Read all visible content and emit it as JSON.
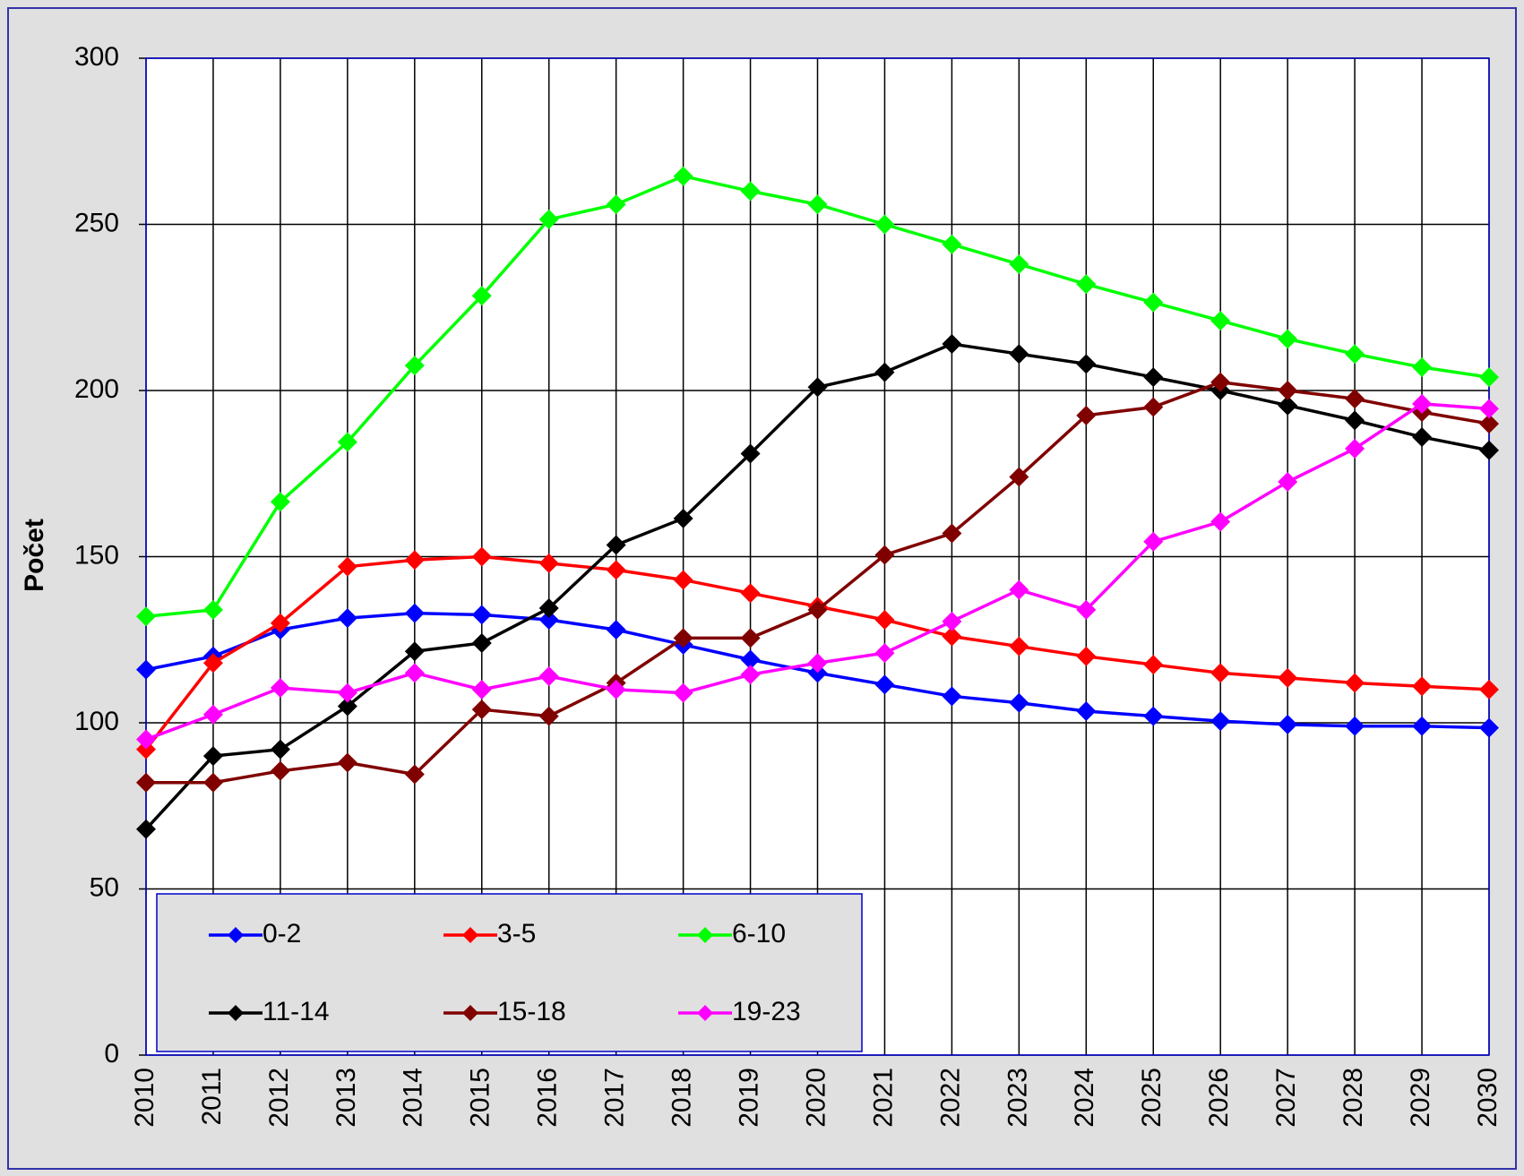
{
  "chart_data": {
    "type": "line",
    "y_label": "Počet",
    "categories": [
      "2010",
      "2011",
      "2012",
      "2013",
      "2014",
      "2015",
      "2016",
      "2017",
      "2018",
      "2019",
      "2020",
      "2021",
      "2022",
      "2023",
      "2024",
      "2025",
      "2026",
      "2027",
      "2028",
      "2029",
      "2030"
    ],
    "ylim": [
      0,
      300
    ],
    "yticks": [
      0,
      50,
      100,
      150,
      200,
      250,
      300
    ],
    "grid": true,
    "legend": "lower left",
    "series": [
      {
        "name": "0-2",
        "color": "#0000ff",
        "values": [
          116,
          120,
          128,
          131.5,
          133,
          132.5,
          131,
          128,
          123.5,
          119,
          115,
          111.5,
          108,
          106,
          103.5,
          102,
          100.5,
          99.5,
          99,
          99,
          98.5
        ]
      },
      {
        "name": "3-5",
        "color": "#ff0000",
        "values": [
          92,
          118,
          130,
          147,
          149,
          150,
          148,
          146,
          143,
          139,
          135,
          131,
          126,
          123,
          120,
          117.5,
          115,
          113.5,
          112,
          111,
          110
        ]
      },
      {
        "name": "6-10",
        "color": "#00ff00",
        "values": [
          132,
          134,
          166.5,
          184.5,
          207.5,
          228.5,
          251.5,
          256,
          264.5,
          260,
          256,
          250,
          244,
          238,
          232,
          226.5,
          221,
          215.5,
          211,
          207,
          204
        ]
      },
      {
        "name": "11-14",
        "color": "#000000",
        "values": [
          68,
          90,
          92,
          105,
          121.5,
          124,
          134.5,
          153.5,
          161.5,
          181,
          201,
          205.5,
          214,
          211,
          208,
          204,
          200,
          195.5,
          191,
          186,
          182
        ]
      },
      {
        "name": "15-18",
        "color": "#800000",
        "values": [
          82,
          82,
          85.5,
          88,
          84.5,
          104,
          102,
          112,
          125.5,
          125.5,
          134,
          150.5,
          157,
          174,
          192.5,
          195,
          202.5,
          200,
          197.5,
          193.5,
          190
        ]
      },
      {
        "name": "19-23",
        "color": "#ff00ff",
        "values": [
          95,
          102.5,
          110.5,
          109,
          115,
          110,
          114,
          110,
          109,
          114.5,
          118,
          121,
          130.5,
          140,
          134,
          154.5,
          160.5,
          172.5,
          182.5,
          196,
          194.5
        ]
      }
    ]
  }
}
